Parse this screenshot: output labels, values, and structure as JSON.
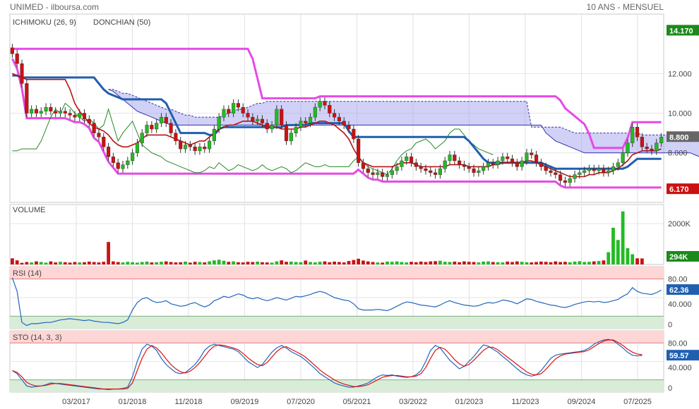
{
  "header": {
    "left": "UNIMED - ilboursa.com",
    "right": "10 ANS - MENSUEL"
  },
  "colors": {
    "ichimoku": "#1f5fb0",
    "donchian": "#e64ae6",
    "up": "#22bb22",
    "down": "#cc1111",
    "cloud": "#9999ee",
    "volume_label": "#22aa22"
  },
  "chart_data": [
    {
      "type": "candlestick",
      "panel": "price",
      "legend": [
        "ICHIMOKU (26, 9)",
        "DONCHIAN (50)"
      ],
      "yticks": [
        "14.170",
        "12.000",
        "10.000",
        "8.800",
        "8.000",
        "6.170"
      ],
      "ylim": [
        5.5,
        15.0
      ],
      "last_price": "8.800",
      "donchian_high_tag": "14.170",
      "donchian_low_tag": "6.170",
      "xticks": [
        "03/2017",
        "01/2018",
        "11/2018",
        "09/2019",
        "07/2020",
        "05/2021",
        "03/2022",
        "01/2023",
        "11/2023",
        "09/2024",
        "07/2025"
      ],
      "close": [
        13.0,
        12.5,
        11.5,
        10.0,
        10.2,
        10.0,
        10.1,
        10.3,
        10.1,
        10.0,
        10.1,
        10.0,
        9.9,
        9.8,
        10.0,
        9.7,
        9.5,
        9.0,
        8.8,
        8.3,
        7.8,
        7.5,
        7.2,
        7.4,
        7.6,
        8.0,
        8.5,
        9.0,
        9.4,
        9.2,
        9.5,
        9.8,
        9.5,
        9.0,
        8.6,
        8.2,
        8.4,
        8.3,
        8.1,
        8.3,
        8.2,
        8.6,
        9.2,
        9.8,
        10.2,
        10.0,
        10.5,
        10.3,
        10.0,
        9.8,
        9.6,
        9.7,
        9.5,
        9.2,
        9.4,
        10.2,
        9.4,
        8.6,
        9.0,
        9.3,
        9.6,
        9.5,
        9.8,
        10.3,
        10.6,
        10.4,
        10.0,
        9.8,
        9.6,
        9.4,
        9.2,
        8.7,
        7.5,
        7.2,
        7.0,
        6.9,
        7.0,
        6.8,
        6.9,
        7.1,
        7.3,
        7.6,
        7.8,
        7.5,
        7.3,
        7.2,
        7.1,
        7.0,
        6.9,
        7.2,
        7.6,
        7.9,
        7.6,
        7.4,
        7.3,
        7.2,
        7.0,
        7.1,
        7.3,
        7.5,
        7.4,
        7.6,
        7.8,
        7.7,
        7.5,
        7.3,
        7.6,
        8.0,
        7.9,
        7.5,
        7.3,
        7.1,
        7.0,
        6.9,
        6.6,
        6.5,
        6.7,
        6.9,
        7.0,
        7.1,
        7.2,
        7.1,
        7.2,
        7.0,
        7.1,
        7.3,
        7.5,
        8.0,
        8.5,
        9.3,
        8.8,
        8.3,
        8.2,
        8.1,
        8.5,
        8.8
      ],
      "tenkan": [
        12.0,
        11.9,
        11.8,
        11.7,
        11.7,
        11.7,
        11.7,
        11.7,
        11.7,
        11.7,
        11.7,
        11.7,
        11.2,
        10.5,
        10.1,
        9.8,
        9.5,
        9.3,
        9.2,
        9.1,
        8.9,
        8.6,
        8.4,
        8.3,
        8.3,
        8.4,
        8.5,
        8.7,
        8.9,
        8.9,
        8.9,
        8.9,
        8.9,
        8.8,
        8.7,
        8.6,
        8.5,
        8.4,
        8.5,
        8.6,
        8.6,
        8.8,
        9.0,
        9.2,
        9.3,
        9.4,
        9.4,
        9.5,
        9.6,
        9.6,
        9.6,
        9.5,
        9.4,
        9.3,
        9.3,
        9.3,
        9.2,
        9.2,
        9.2,
        9.2,
        9.3,
        9.3,
        9.4,
        9.5,
        9.6,
        9.6,
        9.5,
        9.4,
        9.2,
        9.0,
        8.7,
        8.2,
        7.8,
        7.5,
        7.4,
        7.3,
        7.3,
        7.3,
        7.3,
        7.3,
        7.4,
        7.5,
        7.5,
        7.5,
        7.4,
        7.3,
        7.3,
        7.3,
        7.3,
        7.3,
        7.3,
        7.4,
        7.4,
        7.4,
        7.4,
        7.3,
        7.3,
        7.3,
        7.3,
        7.3,
        7.4,
        7.4,
        7.5,
        7.5,
        7.5,
        7.5,
        7.5,
        7.6,
        7.6,
        7.5,
        7.4,
        7.3,
        7.2,
        7.1,
        7.0,
        6.9,
        6.8,
        6.8,
        6.8,
        6.8,
        6.9,
        6.9,
        7.0,
        7.0,
        7.0,
        7.1,
        7.2,
        7.4,
        7.6,
        7.9,
        8.0,
        8.1,
        8.1,
        8.1,
        8.1,
        8.2
      ],
      "kijun": [
        11.9,
        11.9,
        11.8,
        11.8,
        11.8,
        11.8,
        11.8,
        11.8,
        11.8,
        11.8,
        11.8,
        11.8,
        11.8,
        11.8,
        11.8,
        11.8,
        11.8,
        11.8,
        11.5,
        11.2,
        11.0,
        10.9,
        10.8,
        10.7,
        10.7,
        10.7,
        10.7,
        10.7,
        10.7,
        10.7,
        10.7,
        10.7,
        10.5,
        10.0,
        9.5,
        9.0,
        9.0,
        9.0,
        9.0,
        9.0,
        9.0,
        8.9,
        8.9,
        9.2,
        9.3,
        9.3,
        9.3,
        9.3,
        9.3,
        9.3,
        9.3,
        9.3,
        9.3,
        9.3,
        9.3,
        9.3,
        9.3,
        9.4,
        9.4,
        9.4,
        9.4,
        9.4,
        9.5,
        9.5,
        9.5,
        9.5,
        9.5,
        9.5,
        9.5,
        9.5,
        9.1,
        8.8,
        8.8,
        8.8,
        8.8,
        8.8,
        8.8,
        8.8,
        8.8,
        8.8,
        8.8,
        8.8,
        8.8,
        8.8,
        8.8,
        8.8,
        8.8,
        8.8,
        8.8,
        8.8,
        8.8,
        8.8,
        8.8,
        8.8,
        8.8,
        8.6,
        8.3,
        8.0,
        7.7,
        7.5,
        7.5,
        7.5,
        7.5,
        7.5,
        7.5,
        7.5,
        7.5,
        7.5,
        7.5,
        7.5,
        7.5,
        7.4,
        7.3,
        7.2,
        7.2,
        7.2,
        7.2,
        7.2,
        7.2,
        7.2,
        7.2,
        7.2,
        7.2,
        7.2,
        7.2,
        7.2,
        7.2,
        7.2,
        7.3,
        7.5,
        7.7,
        7.7,
        7.7,
        7.7,
        7.7,
        7.7
      ],
      "chikou": [
        8.1,
        8.1,
        8.2,
        8.2,
        8.2,
        8.2,
        8.6,
        9.2,
        9.8,
        10.2,
        10.0,
        10.5,
        10.3,
        10.0,
        9.8,
        9.6,
        9.7,
        9.5,
        9.2,
        9.4,
        10.2,
        9.4,
        8.6,
        9.0,
        9.3,
        9.6,
        9.0,
        8.4,
        8.2,
        8.0,
        7.9,
        7.8,
        7.6,
        7.5,
        7.4,
        7.3,
        7.2,
        7.1,
        7.0,
        7.0,
        7.1,
        7.3,
        7.2,
        7.5,
        7.3,
        7.1,
        7.2,
        7.4,
        7.3,
        7.2,
        7.1,
        7.2,
        7.4,
        7.2,
        7.1,
        7.2,
        7.3,
        7.2,
        7.0,
        7.1,
        7.3,
        7.5,
        7.4,
        7.3,
        7.3,
        7.4,
        7.3,
        7.3,
        7.3,
        7.3,
        7.3,
        7.6,
        7.8,
        7.5,
        7.3,
        7.2,
        7.1,
        7.0,
        6.9,
        7.2,
        7.6,
        7.9,
        8.1,
        8.2,
        8.5,
        8.6,
        8.7,
        8.5,
        8.2,
        8.4,
        8.6,
        9.0,
        9.2,
        9.2,
        8.9,
        8.6,
        8.4,
        8.2,
        8.1,
        8.0,
        7.9
      ],
      "senkou_a": [
        11.2,
        11.2,
        11.1,
        11.0,
        11.0,
        10.9,
        10.8,
        10.7,
        10.6,
        10.5,
        10.4,
        10.3,
        10.2,
        10.2,
        10.1,
        10.0,
        9.9,
        9.9,
        9.8,
        9.8,
        9.8,
        9.8,
        9.8,
        9.8,
        9.9,
        10.0,
        10.1,
        10.2,
        10.2,
        10.3,
        10.4,
        10.5,
        10.5,
        10.6,
        10.6,
        10.6,
        10.6,
        10.6,
        10.6,
        10.6,
        10.6,
        10.6,
        10.6,
        10.6,
        10.6,
        10.6,
        10.6,
        10.6,
        10.6,
        10.6,
        10.6,
        10.6,
        10.6,
        10.6,
        10.6,
        10.6,
        10.6,
        10.6,
        10.6,
        10.6,
        10.6,
        10.6,
        10.6,
        10.6,
        10.6,
        10.6,
        10.6,
        10.6,
        10.6,
        10.6,
        10.6,
        10.6,
        10.6,
        10.6,
        10.6,
        10.6,
        10.6,
        10.6,
        10.6,
        10.6,
        10.6,
        10.6,
        10.6,
        10.6,
        10.6,
        10.6,
        10.6,
        10.6,
        9.3,
        9.3,
        9.3,
        9.3,
        9.3,
        9.3,
        9.3,
        9.2,
        9.1,
        9.0,
        9.0,
        9.0,
        9.0,
        9.0,
        9.0,
        9.0,
        9.0,
        9.0,
        9.0,
        9.0,
        9.0,
        9.0,
        9.0,
        8.9,
        8.9,
        8.9,
        8.9,
        8.9,
        8.9,
        8.9,
        8.9,
        8.9,
        8.9,
        8.9,
        8.9,
        8.9,
        8.9,
        8.9,
        8.9,
        8.9,
        8.9,
        8.9,
        8.9
      ],
      "senkou_b": [
        11.2,
        11.1,
        10.9,
        10.7,
        10.5,
        10.3,
        10.1,
        10.0,
        9.9,
        9.8,
        9.7,
        9.6,
        9.5,
        9.4,
        9.4,
        9.4,
        9.4,
        9.4,
        9.4,
        9.4,
        9.4,
        9.4,
        9.4,
        9.4,
        9.4,
        9.4,
        9.4,
        9.4,
        9.4,
        9.4,
        9.4,
        9.4,
        9.4,
        9.4,
        9.4,
        9.4,
        9.4,
        9.4,
        9.4,
        9.4,
        9.4,
        9.4,
        9.4,
        9.4,
        9.4,
        9.4,
        9.4,
        9.4,
        9.4,
        9.4,
        9.4,
        9.4,
        9.4,
        9.4,
        9.4,
        9.4,
        9.4,
        9.4,
        9.4,
        9.4,
        9.4,
        9.4,
        9.4,
        9.4,
        9.4,
        9.4,
        9.4,
        9.4,
        9.4,
        9.4,
        9.4,
        9.4,
        9.4,
        9.4,
        9.4,
        9.4,
        9.4,
        9.4,
        9.4,
        9.4,
        9.4,
        9.4,
        9.4,
        9.4,
        9.4,
        9.4,
        9.4,
        9.4,
        9.4,
        9.4,
        9.4,
        9.0,
        8.8,
        8.6,
        8.5,
        8.4,
        8.3,
        8.2,
        8.1,
        8.0,
        8.0,
        8.0,
        8.0,
        8.0,
        8.0,
        8.0,
        8.0,
        8.0,
        8.0,
        8.0,
        8.0,
        8.0,
        8.0,
        8.0,
        8.0,
        8.0,
        8.0,
        8.0,
        8.0,
        8.0,
        8.0,
        8.0,
        7.9,
        7.8,
        7.7,
        7.6,
        7.5,
        7.5,
        7.5,
        7.5,
        7.5
      ]
    },
    {
      "type": "bar",
      "panel": "volume",
      "label": "VOLUME",
      "ytick": "2000K",
      "last_tag": "294K",
      "values_k": [
        300,
        200,
        80,
        120,
        100,
        150,
        120,
        90,
        150,
        100,
        130,
        110,
        90,
        120,
        100,
        110,
        140,
        120,
        100,
        130,
        1100,
        150,
        120,
        100,
        130,
        110,
        90,
        120,
        140,
        100,
        110,
        130,
        150,
        120,
        100,
        110,
        140,
        90,
        130,
        120,
        100,
        150,
        200,
        230,
        180,
        130,
        150,
        110,
        100,
        130,
        120,
        140,
        110,
        100,
        90,
        150,
        200,
        130,
        140,
        120,
        110,
        190,
        120,
        100,
        130,
        150,
        110,
        140,
        120,
        100,
        170,
        220,
        280,
        190,
        150,
        120,
        100,
        90,
        140,
        130,
        150,
        120,
        100,
        130,
        110,
        140,
        120,
        150,
        160,
        180,
        130,
        120,
        140,
        110,
        150,
        130,
        120,
        100,
        140,
        150,
        120,
        110,
        100,
        140,
        120,
        150,
        130,
        110,
        100,
        120,
        140,
        130,
        110,
        150,
        120,
        130,
        110,
        140,
        160,
        120,
        130,
        150,
        170,
        200,
        600,
        1800,
        1200,
        2600,
        800,
        500,
        300,
        294
      ]
    },
    {
      "type": "line",
      "panel": "rsi",
      "label": "RSI (14)",
      "yticks": [
        "80.00",
        "40.000",
        "0"
      ],
      "last_tag": "62.36",
      "values": [
        82,
        60,
        10,
        5,
        8,
        8,
        9,
        10,
        10,
        12,
        14,
        15,
        16,
        15,
        14,
        13,
        14,
        12,
        11,
        10,
        10,
        9,
        8,
        10,
        14,
        30,
        42,
        48,
        50,
        45,
        42,
        43,
        45,
        40,
        38,
        36,
        37,
        40,
        42,
        38,
        35,
        38,
        45,
        48,
        52,
        50,
        53,
        56,
        54,
        50,
        48,
        50,
        47,
        45,
        47,
        50,
        48,
        46,
        49,
        52,
        51,
        53,
        55,
        58,
        60,
        58,
        54,
        50,
        48,
        46,
        45,
        40,
        32,
        30,
        30,
        30,
        31,
        30,
        29,
        32,
        36,
        40,
        43,
        42,
        40,
        38,
        37,
        36,
        35,
        38,
        42,
        45,
        42,
        40,
        38,
        37,
        36,
        37,
        40,
        42,
        41,
        43,
        46,
        45,
        43,
        40,
        44,
        48,
        47,
        44,
        42,
        40,
        38,
        37,
        35,
        34,
        36,
        39,
        41,
        43,
        44,
        43,
        44,
        42,
        43,
        45,
        47,
        52,
        56,
        66,
        60,
        57,
        56,
        55,
        58,
        62
      ]
    },
    {
      "type": "line",
      "panel": "sto",
      "label": "STO (14, 3, 3)",
      "yticks": [
        "80.00",
        "40.000",
        "0"
      ],
      "last_tag": "59.57",
      "series": [
        {
          "values": [
            35,
            30,
            20,
            10,
            8,
            9,
            10,
            12,
            15,
            14,
            13,
            12,
            11,
            10,
            9,
            8,
            7,
            6,
            5,
            5,
            4,
            5,
            5,
            6,
            8,
            25,
            50,
            70,
            78,
            75,
            68,
            55,
            45,
            38,
            32,
            30,
            32,
            38,
            45,
            55,
            68,
            75,
            78,
            76,
            74,
            72,
            70,
            66,
            58,
            50,
            45,
            40,
            45,
            55,
            65,
            72,
            76,
            72,
            66,
            62,
            58,
            52,
            45,
            38,
            30,
            25,
            20,
            15,
            12,
            10,
            8,
            8,
            10,
            12,
            15,
            20,
            25,
            28,
            27,
            28,
            26,
            25,
            24,
            25,
            28,
            35,
            50,
            68,
            76,
            72,
            62,
            52,
            45,
            38,
            42,
            50,
            58,
            68,
            77,
            75,
            70,
            65,
            58,
            52,
            45,
            38,
            32,
            28,
            26,
            28,
            35,
            45,
            55,
            60,
            62,
            63,
            64,
            65,
            66,
            68,
            72,
            78,
            82,
            85,
            86,
            84,
            78,
            72,
            65,
            60,
            59,
            59.6
          ]
        },
        {
          "values": [
            35,
            32,
            25,
            16,
            12,
            10,
            10,
            11,
            13,
            14,
            14,
            13,
            12,
            11,
            10,
            9,
            8,
            7,
            6,
            5,
            5,
            5,
            5,
            5,
            6,
            15,
            35,
            55,
            70,
            76,
            72,
            64,
            54,
            45,
            38,
            33,
            31,
            34,
            40,
            48,
            58,
            68,
            75,
            77,
            76,
            74,
            72,
            69,
            63,
            56,
            50,
            45,
            43,
            48,
            57,
            66,
            72,
            74,
            70,
            66,
            62,
            57,
            50,
            43,
            36,
            30,
            25,
            20,
            16,
            13,
            11,
            9,
            9,
            10,
            12,
            16,
            20,
            24,
            26,
            27,
            27,
            26,
            25,
            25,
            26,
            30,
            40,
            55,
            68,
            73,
            70,
            62,
            53,
            46,
            42,
            45,
            52,
            60,
            68,
            73,
            73,
            69,
            63,
            57,
            51,
            45,
            39,
            33,
            29,
            28,
            30,
            37,
            46,
            54,
            59,
            62,
            63,
            64,
            65,
            66,
            69,
            74,
            79,
            83,
            85,
            85,
            81,
            76,
            70,
            65,
            62,
            61
          ]
        }
      ]
    }
  ]
}
